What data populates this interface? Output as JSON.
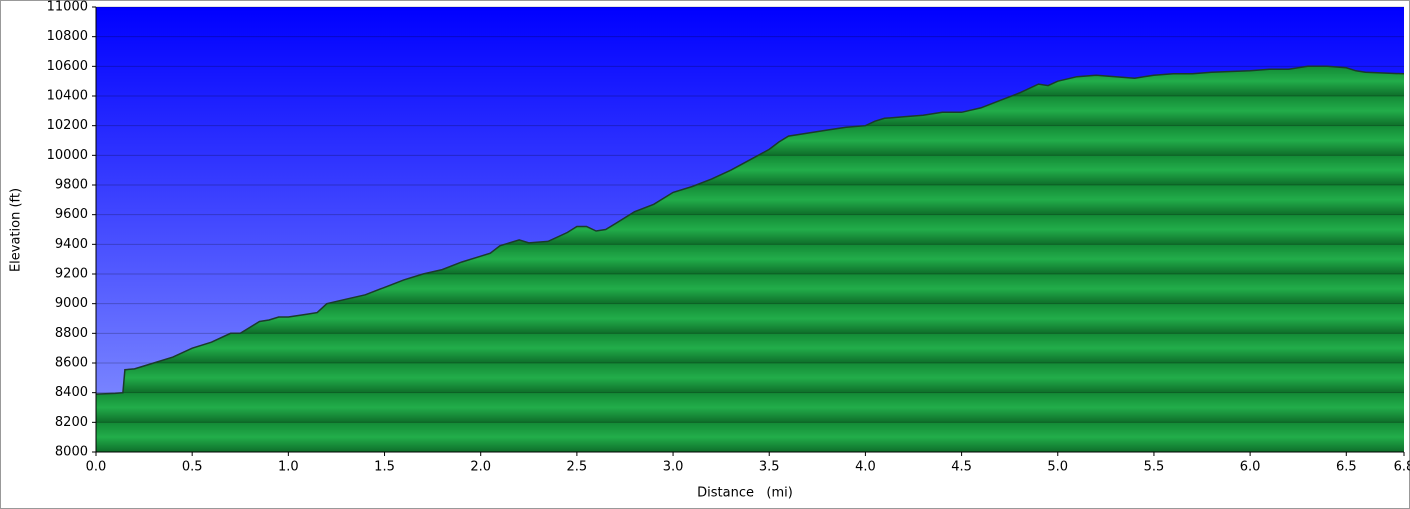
{
  "chart_data": {
    "type": "area",
    "x_label": "Distance   (mi)",
    "y_label": "Elevation (ft)",
    "x": [
      0,
      0.1,
      0.14,
      0.15,
      0.2,
      0.3,
      0.4,
      0.5,
      0.6,
      0.7,
      0.75,
      0.85,
      0.9,
      0.95,
      1.0,
      1.1,
      1.15,
      1.2,
      1.3,
      1.4,
      1.5,
      1.6,
      1.7,
      1.8,
      1.9,
      2.0,
      2.05,
      2.1,
      2.2,
      2.25,
      2.35,
      2.45,
      2.5,
      2.55,
      2.6,
      2.65,
      2.7,
      2.8,
      2.9,
      3.0,
      3.1,
      3.2,
      3.3,
      3.4,
      3.5,
      3.55,
      3.6,
      3.7,
      3.8,
      3.9,
      4.0,
      4.05,
      4.1,
      4.2,
      4.3,
      4.4,
      4.5,
      4.6,
      4.7,
      4.8,
      4.9,
      4.95,
      5.0,
      5.1,
      5.2,
      5.3,
      5.4,
      5.5,
      5.6,
      5.7,
      5.8,
      5.9,
      6.0,
      6.1,
      6.2,
      6.3,
      6.4,
      6.5,
      6.55,
      6.6,
      6.8
    ],
    "values": [
      8390,
      8395,
      8400,
      8555,
      8560,
      8600,
      8640,
      8700,
      8740,
      8800,
      8800,
      8880,
      8890,
      8910,
      8910,
      8930,
      8940,
      9000,
      9030,
      9060,
      9110,
      9160,
      9200,
      9230,
      9280,
      9320,
      9340,
      9390,
      9430,
      9410,
      9420,
      9480,
      9520,
      9520,
      9490,
      9500,
      9540,
      9620,
      9670,
      9750,
      9790,
      9840,
      9900,
      9970,
      10040,
      10090,
      10130,
      10150,
      10170,
      10190,
      10200,
      10230,
      10250,
      10260,
      10270,
      10290,
      10290,
      10320,
      10370,
      10420,
      10480,
      10470,
      10500,
      10530,
      10540,
      10530,
      10520,
      10540,
      10550,
      10550,
      10560,
      10565,
      10570,
      10580,
      10580,
      10600,
      10600,
      10590,
      10570,
      10560,
      10550
    ],
    "color": "#22aa48",
    "xlim": [
      0,
      6.8
    ],
    "ylim": [
      8000,
      11000
    ],
    "xticks": [
      {
        "value": 0,
        "label": "0.0"
      },
      0.5,
      {
        "value": 1,
        "label": "1.0"
      },
      1.5,
      {
        "value": 2,
        "label": "2.0"
      },
      2.5,
      {
        "value": 3,
        "label": "3.0"
      },
      3.5,
      {
        "value": 4,
        "label": "4.0"
      },
      4.5,
      {
        "value": 5,
        "label": "5.0"
      },
      5.5,
      {
        "value": 6,
        "label": "6.0"
      },
      6.5,
      6.8
    ],
    "yticks": [
      8000,
      8200,
      8400,
      8600,
      8800,
      9000,
      9200,
      9400,
      9600,
      9800,
      10000,
      10200,
      10400,
      10600,
      10800,
      11000
    ],
    "grid": true
  }
}
